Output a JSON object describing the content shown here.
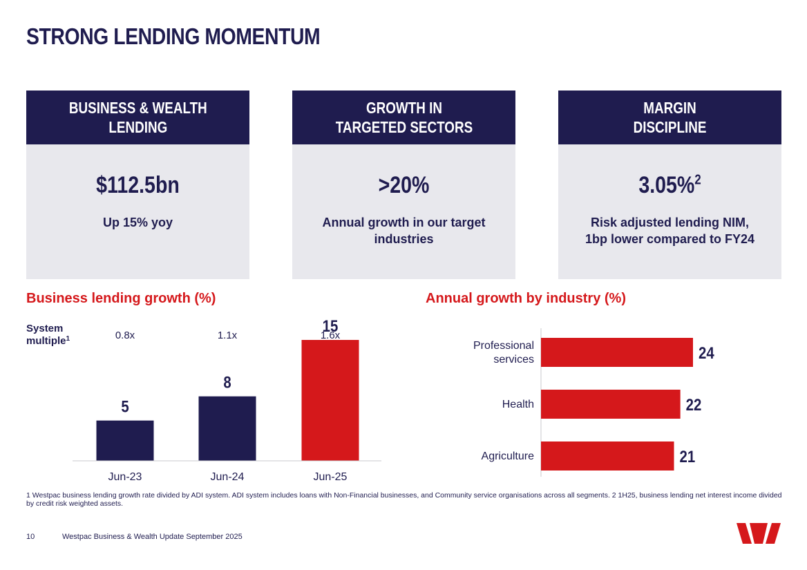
{
  "page": {
    "title": "STRONG LENDING MOMENTUM",
    "page_number": "10",
    "footer": "Westpac Business & Wealth Update September 2025",
    "footnote": "1 Westpac business lending growth rate divided by ADI system. ADI system includes loans with Non-Financial businesses, and Community service organisations across all segments. 2 1H25, business lending net interest income divided by credit risk weighted assets."
  },
  "cards": [
    {
      "header": "BUSINESS & WEALTH\nLENDING",
      "value": "$112.5bn",
      "value_sup": "",
      "description": "Up 15% yoy"
    },
    {
      "header": "GROWTH IN\nTARGETED SECTORS",
      "value": ">20%",
      "value_sup": "",
      "description": "Annual growth in our target\nindustries"
    },
    {
      "header": "MARGIN\nDISCIPLINE",
      "value": "3.05%",
      "value_sup": "2",
      "description": "Risk adjusted lending NIM,\n1bp lower compared to FY24"
    }
  ],
  "colors": {
    "navy": "#1f1c4f",
    "red": "#d5181b",
    "card_bg": "#e8e8ed"
  },
  "chart_data": [
    {
      "type": "bar",
      "title": "Business lending growth (%)",
      "categories": [
        "Jun-23",
        "Jun-24",
        "Jun-25"
      ],
      "values": [
        5,
        8,
        15
      ],
      "bar_colors": [
        "#1f1c4f",
        "#1f1c4f",
        "#d5181b"
      ],
      "system_multiple_label": "System multiple",
      "system_multiple_sup": "1",
      "system_multiple": [
        "0.8x",
        "1.1x",
        "1.6x"
      ],
      "ylim": [
        0,
        18
      ]
    },
    {
      "type": "bar",
      "orientation": "horizontal",
      "title": "Annual growth by industry (%)",
      "categories": [
        "Professional services",
        "Health",
        "Agriculture"
      ],
      "category_lines": [
        [
          "Professional",
          "services"
        ],
        [
          "Health"
        ],
        [
          "Agriculture"
        ]
      ],
      "values": [
        24,
        22,
        21
      ],
      "bar_color": "#d5181b",
      "xlim": [
        0,
        30
      ]
    }
  ]
}
